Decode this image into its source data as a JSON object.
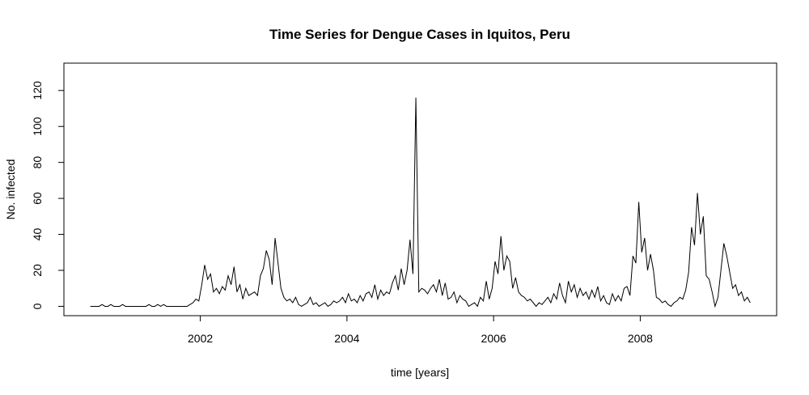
{
  "chart_data": {
    "type": "line",
    "title": "Time Series for Dengue Cases in Iquitos, Peru",
    "x_label": "time [years]",
    "y_label": "No. infected",
    "color": "#000000",
    "xlim": [
      2000.14,
      2009.86
    ],
    "ylim": [
      -5.2,
      135.2
    ],
    "xticks": [
      2002,
      2004,
      2006,
      2008
    ],
    "yticks": [
      0,
      20,
      40,
      60,
      80,
      100,
      120
    ],
    "x": [
      2000.5,
      2000.54,
      2000.58,
      2000.62,
      2000.66,
      2000.7,
      2000.74,
      2000.78,
      2000.82,
      2000.86,
      2000.9,
      2000.94,
      2000.98,
      2001.02,
      2001.06,
      2001.1,
      2001.14,
      2001.18,
      2001.22,
      2001.26,
      2001.3,
      2001.34,
      2001.38,
      2001.42,
      2001.46,
      2001.5,
      2001.54,
      2001.58,
      2001.62,
      2001.66,
      2001.7,
      2001.74,
      2001.78,
      2001.82,
      2001.86,
      2001.9,
      2001.94,
      2001.98,
      2002.02,
      2002.06,
      2002.1,
      2002.14,
      2002.18,
      2002.22,
      2002.26,
      2002.3,
      2002.34,
      2002.38,
      2002.42,
      2002.46,
      2002.5,
      2002.54,
      2002.58,
      2002.62,
      2002.66,
      2002.7,
      2002.74,
      2002.78,
      2002.82,
      2002.86,
      2002.9,
      2002.94,
      2002.98,
      2003.02,
      2003.06,
      2003.1,
      2003.14,
      2003.18,
      2003.22,
      2003.26,
      2003.3,
      2003.34,
      2003.38,
      2003.42,
      2003.46,
      2003.5,
      2003.54,
      2003.58,
      2003.62,
      2003.66,
      2003.7,
      2003.74,
      2003.78,
      2003.82,
      2003.86,
      2003.9,
      2003.94,
      2003.98,
      2004.02,
      2004.06,
      2004.1,
      2004.14,
      2004.18,
      2004.22,
      2004.26,
      2004.3,
      2004.34,
      2004.38,
      2004.42,
      2004.46,
      2004.5,
      2004.54,
      2004.58,
      2004.62,
      2004.66,
      2004.7,
      2004.74,
      2004.78,
      2004.82,
      2004.86,
      2004.9,
      2004.94,
      2004.98,
      2005.02,
      2005.06,
      2005.1,
      2005.14,
      2005.18,
      2005.22,
      2005.26,
      2005.3,
      2005.34,
      2005.38,
      2005.42,
      2005.46,
      2005.5,
      2005.54,
      2005.58,
      2005.62,
      2005.66,
      2005.7,
      2005.74,
      2005.78,
      2005.82,
      2005.86,
      2005.9,
      2005.94,
      2005.98,
      2006.02,
      2006.06,
      2006.1,
      2006.14,
      2006.18,
      2006.22,
      2006.26,
      2006.3,
      2006.34,
      2006.38,
      2006.42,
      2006.46,
      2006.5,
      2006.54,
      2006.58,
      2006.62,
      2006.66,
      2006.7,
      2006.74,
      2006.78,
      2006.82,
      2006.86,
      2006.9,
      2006.94,
      2006.98,
      2007.02,
      2007.06,
      2007.1,
      2007.14,
      2007.18,
      2007.22,
      2007.26,
      2007.3,
      2007.34,
      2007.38,
      2007.42,
      2007.46,
      2007.5,
      2007.54,
      2007.58,
      2007.62,
      2007.66,
      2007.7,
      2007.74,
      2007.78,
      2007.82,
      2007.86,
      2007.9,
      2007.94,
      2007.98,
      2008.02,
      2008.06,
      2008.1,
      2008.14,
      2008.18,
      2008.22,
      2008.26,
      2008.3,
      2008.34,
      2008.38,
      2008.42,
      2008.46,
      2008.5,
      2008.54,
      2008.58,
      2008.62,
      2008.66,
      2008.7,
      2008.74,
      2008.78,
      2008.82,
      2008.86,
      2008.9,
      2008.94,
      2008.98,
      2009.02,
      2009.06,
      2009.1,
      2009.14,
      2009.18,
      2009.22,
      2009.26,
      2009.3,
      2009.34,
      2009.38,
      2009.42,
      2009.46,
      2009.5
    ],
    "values": [
      0,
      0,
      0,
      0,
      1,
      0,
      0,
      1,
      0,
      0,
      0,
      1,
      0,
      0,
      0,
      0,
      0,
      0,
      0,
      0,
      1,
      0,
      0,
      1,
      0,
      1,
      0,
      0,
      0,
      0,
      0,
      0,
      0,
      0,
      1,
      2,
      4,
      3,
      12,
      23,
      15,
      18,
      8,
      10,
      7,
      11,
      9,
      17,
      12,
      22,
      8,
      12,
      4,
      10,
      6,
      7,
      8,
      6,
      17,
      21,
      31,
      26,
      12,
      38,
      24,
      10,
      5,
      3,
      4,
      2,
      5,
      1,
      0,
      1,
      2,
      5,
      1,
      2,
      0,
      1,
      2,
      0,
      1,
      3,
      2,
      3,
      5,
      2,
      7,
      3,
      4,
      2,
      6,
      3,
      7,
      8,
      5,
      12,
      4,
      9,
      6,
      8,
      7,
      13,
      17,
      9,
      21,
      12,
      20,
      37,
      18,
      116,
      8,
      10,
      9,
      7,
      10,
      12,
      8,
      15,
      6,
      13,
      4,
      5,
      8,
      2,
      6,
      4,
      3,
      0,
      1,
      2,
      0,
      5,
      3,
      14,
      4,
      10,
      25,
      18,
      39,
      20,
      28,
      25,
      10,
      16,
      8,
      6,
      5,
      3,
      4,
      2,
      0,
      2,
      1,
      3,
      5,
      2,
      7,
      4,
      13,
      6,
      2,
      14,
      8,
      12,
      5,
      10,
      6,
      8,
      4,
      9,
      5,
      11,
      3,
      6,
      2,
      1,
      7,
      3,
      6,
      3,
      10,
      11,
      6,
      28,
      24,
      58,
      30,
      38,
      20,
      29,
      20,
      5,
      4,
      2,
      3,
      1,
      0,
      2,
      3,
      5,
      4,
      9,
      19,
      44,
      34,
      63,
      40,
      50,
      17,
      15,
      8,
      0,
      5,
      20,
      35,
      28,
      19,
      10,
      12,
      6,
      8,
      3,
      5,
      2
    ]
  }
}
